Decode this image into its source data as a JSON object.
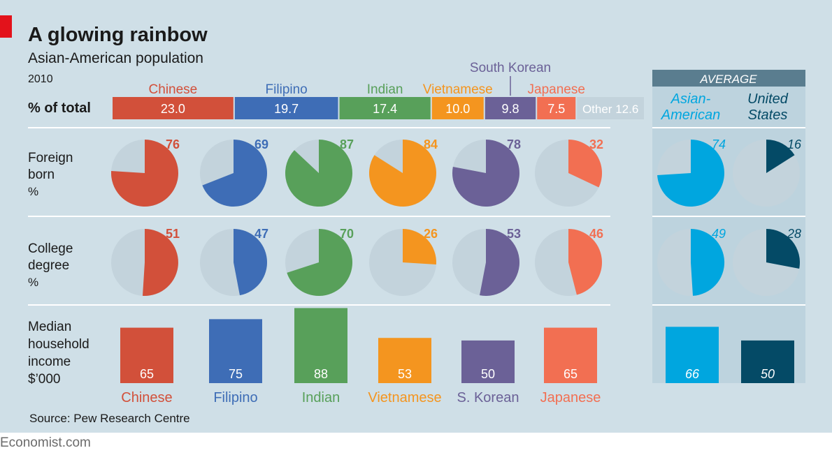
{
  "title": "A glowing rainbow",
  "subtitle": "Asian-American population",
  "year": "2010",
  "source": "Source: Pew Research Centre",
  "brand": "Economist.com",
  "colors": {
    "background": "#cfdfe7",
    "accent": "#e3121b",
    "pie_bg": "#c3d3dc",
    "other": "#c3d3dc",
    "divider": "#ffffff",
    "text": "#1a1a1a",
    "avg_panel": "#bdd3de",
    "avg_header": "#5a7d8f"
  },
  "chart_data": {
    "type": "composite",
    "groups": [
      {
        "key": "chinese",
        "name": "Chinese",
        "bottom_label": "Chinese",
        "color": "#d2503a",
        "share": 23.0,
        "share_label": "23.0",
        "foreign_born": 76,
        "college": 51,
        "income": 65
      },
      {
        "key": "filipino",
        "name": "Filipino",
        "bottom_label": "Filipino",
        "color": "#3e6db6",
        "share": 19.7,
        "share_label": "19.7",
        "foreign_born": 69,
        "college": 47,
        "income": 75
      },
      {
        "key": "indian",
        "name": "Indian",
        "bottom_label": "Indian",
        "color": "#58a05a",
        "share": 17.4,
        "share_label": "17.4",
        "foreign_born": 87,
        "college": 70,
        "income": 88
      },
      {
        "key": "vietnamese",
        "name": "Vietnamese",
        "bottom_label": "Vietnamese",
        "color": "#f4951f",
        "share": 10.0,
        "share_label": "10.0",
        "foreign_born": 84,
        "college": 26,
        "income": 53
      },
      {
        "key": "korean",
        "name": "South Korean",
        "bottom_label": "S. Korean",
        "color": "#6b6197",
        "share": 9.8,
        "share_label": "9.8",
        "foreign_born": 78,
        "college": 53,
        "income": 50
      },
      {
        "key": "japanese",
        "name": "Japanese",
        "bottom_label": "Japanese",
        "color": "#f26f52",
        "share": 7.5,
        "share_label": "7.5",
        "foreign_born": 32,
        "college": 46,
        "income": 65
      }
    ],
    "other": {
      "label": "Other 12.6",
      "share": 12.6
    },
    "average": {
      "header": "AVERAGE",
      "series": [
        {
          "key": "asian_american",
          "name_line1": "Asian-",
          "name_line2": "American",
          "color": "#00a6df",
          "foreign_born": 74,
          "college": 49,
          "income": 66
        },
        {
          "key": "us",
          "name_line1": "United",
          "name_line2": "States",
          "color": "#044a66",
          "foreign_born": 16,
          "college": 28,
          "income": 50
        }
      ]
    },
    "rows": {
      "share": {
        "label": "% of total"
      },
      "foreign_born": {
        "line1": "Foreign",
        "line2": "born",
        "line3": "%"
      },
      "college": {
        "line1": "College",
        "line2": "degree",
        "line3": "%"
      },
      "income": {
        "line1": "Median",
        "line2": "household",
        "line3": "income",
        "line4": "$’000",
        "max": 90
      }
    }
  }
}
